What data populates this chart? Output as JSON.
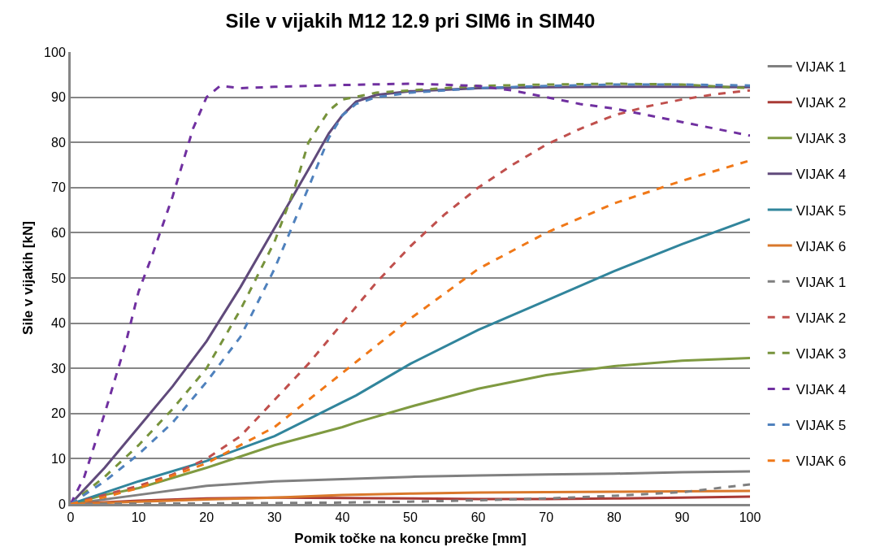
{
  "chart_data": {
    "type": "line",
    "title": "Sile v vijakih M12 12.9 pri SIM6 in SIM40",
    "xlabel": "Pomik točke na koncu prečke [mm]",
    "ylabel": "Sile v vijakih [kN]",
    "xlim": [
      0,
      100
    ],
    "ylim": [
      0,
      100
    ],
    "xticks": [
      0,
      10,
      20,
      30,
      40,
      50,
      60,
      70,
      80,
      90,
      100
    ],
    "yticks": [
      0,
      10,
      20,
      30,
      40,
      50,
      60,
      70,
      80,
      90,
      100
    ],
    "grid": "y",
    "legend": "right",
    "marker": "none",
    "series": [
      {
        "name": "VIJAK 1",
        "color": "#808080",
        "line_style": "solid",
        "x": [
          0,
          10,
          20,
          30,
          40,
          50,
          60,
          70,
          80,
          90,
          100
        ],
        "values": [
          0,
          2,
          4,
          5,
          5.5,
          6,
          6.3,
          6.5,
          6.7,
          7,
          7.2
        ]
      },
      {
        "name": "VIJAK 2",
        "color": "#a93a35",
        "line_style": "solid",
        "x": [
          0,
          10,
          20,
          30,
          40,
          50,
          60,
          70,
          80,
          90,
          100
        ],
        "values": [
          0,
          0.7,
          1.2,
          1.4,
          1.3,
          1.2,
          1.1,
          1.1,
          1.2,
          1.4,
          1.6
        ]
      },
      {
        "name": "VIJAK 3",
        "color": "#7f9a41",
        "line_style": "solid",
        "x": [
          0,
          5,
          10,
          20,
          30,
          40,
          42,
          50,
          60,
          70,
          80,
          90,
          100
        ],
        "values": [
          0,
          2,
          3.5,
          8,
          13,
          17,
          18,
          21.5,
          25.5,
          28.5,
          30.5,
          31.7,
          32.3
        ]
      },
      {
        "name": "VIJAK 4",
        "color": "#604a7b",
        "line_style": "solid",
        "x": [
          0,
          5,
          10,
          15,
          20,
          25,
          30,
          35,
          38,
          40,
          42,
          45,
          50,
          60,
          70,
          80,
          90,
          100
        ],
        "values": [
          0,
          8,
          17,
          26,
          36,
          48,
          61,
          74,
          82,
          86,
          89,
          90.5,
          91.3,
          92,
          92.2,
          92.3,
          92.3,
          92.2
        ]
      },
      {
        "name": "VIJAK 5",
        "color": "#31859c",
        "line_style": "solid",
        "x": [
          0,
          5,
          10,
          20,
          30,
          40,
          42,
          50,
          60,
          70,
          80,
          90,
          100
        ],
        "values": [
          0,
          2.5,
          5,
          9.5,
          15,
          22.5,
          24,
          31,
          38.5,
          45,
          51.5,
          57.5,
          63
        ]
      },
      {
        "name": "VIJAK 6",
        "color": "#d9782b",
        "line_style": "solid",
        "x": [
          0,
          10,
          20,
          30,
          40,
          50,
          60,
          70,
          80,
          90,
          100
        ],
        "values": [
          0,
          0.5,
          1,
          1.4,
          2,
          2.3,
          2.5,
          2.6,
          2.7,
          2.8,
          2.9
        ]
      },
      {
        "name": "VIJAK 1",
        "color": "#7f7f7f",
        "line_style": "dashed",
        "x": [
          0,
          20,
          40,
          50,
          60,
          70,
          80,
          90,
          100
        ],
        "values": [
          0,
          0.1,
          0.3,
          0.5,
          0.8,
          1.2,
          1.8,
          2.6,
          4.3
        ]
      },
      {
        "name": "VIJAK 2",
        "color": "#c0504d",
        "line_style": "dashed",
        "x": [
          0,
          5,
          10,
          15,
          20,
          25,
          30,
          35,
          40,
          45,
          50,
          55,
          60,
          65,
          70,
          75,
          80,
          85,
          90,
          95,
          100
        ],
        "values": [
          0,
          2,
          4,
          6.5,
          10,
          15,
          23,
          31,
          40,
          49,
          57,
          64,
          70,
          75,
          79.5,
          83,
          86,
          88,
          89.5,
          90.7,
          91.5
        ]
      },
      {
        "name": "VIJAK 3",
        "color": "#77933c",
        "line_style": "dashed",
        "x": [
          0,
          5,
          10,
          15,
          20,
          25,
          30,
          33,
          35,
          38,
          40,
          45,
          50,
          60,
          70,
          80,
          90,
          100
        ],
        "values": [
          0,
          6,
          13,
          21,
          30,
          43,
          58,
          70,
          80,
          87,
          89.5,
          91,
          91.5,
          92.5,
          92.8,
          93,
          92.8,
          92
        ]
      },
      {
        "name": "VIJAK 4",
        "color": "#7030a0",
        "line_style": "dashed",
        "x": [
          0,
          2,
          5,
          8,
          10,
          12,
          15,
          18,
          20,
          22,
          25,
          30,
          40,
          50,
          60,
          65,
          70,
          75,
          80,
          85,
          90,
          95,
          100
        ],
        "values": [
          0,
          6,
          20,
          35,
          47,
          55,
          68,
          83,
          90,
          92.5,
          92,
          92.3,
          92.7,
          93,
          92.5,
          91.5,
          90,
          88.5,
          87.5,
          86,
          84.5,
          83,
          81.5
        ]
      },
      {
        "name": "VIJAK 5",
        "color": "#4f81bd",
        "line_style": "dashed",
        "x": [
          0,
          5,
          10,
          15,
          20,
          25,
          30,
          35,
          38,
          40,
          42,
          45,
          50,
          60,
          70,
          80,
          90,
          100
        ],
        "values": [
          0,
          5,
          11,
          18,
          27,
          37,
          52,
          70,
          81,
          86,
          88.5,
          90,
          91,
          92,
          92.5,
          92.8,
          92.8,
          92.6
        ]
      },
      {
        "name": "VIJAK 6",
        "color": "#f07818",
        "line_style": "dashed",
        "x": [
          0,
          5,
          10,
          20,
          30,
          40,
          50,
          60,
          70,
          80,
          90,
          100
        ],
        "values": [
          0,
          1.5,
          3.5,
          9,
          17,
          29,
          41,
          52,
          60,
          66.5,
          71.5,
          76
        ]
      }
    ]
  }
}
